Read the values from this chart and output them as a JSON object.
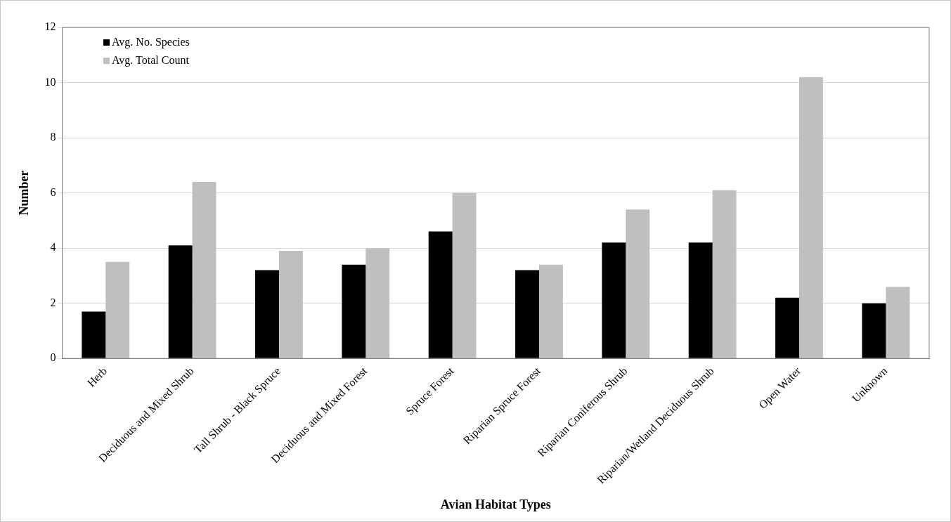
{
  "chart_data": {
    "type": "bar",
    "xlabel": "Avian Habitat Types",
    "ylabel": "Number",
    "categories": [
      "Herb",
      "Deciduous and Mixed Shrub",
      "Tall Shrub - Black Spruce",
      "Deciduous and Mixed Forest",
      "Spruce Forest",
      "Riparian Spruce Forest",
      "Riparian Coniferous Shrub",
      "Riparian/Wetland Deciduous Shrub",
      "Open Water",
      "Unknown"
    ],
    "series": [
      {
        "name": "Avg. No. Species",
        "color": "#000000",
        "values": [
          1.7,
          4.1,
          3.2,
          3.4,
          4.6,
          3.2,
          4.2,
          4.2,
          2.2,
          2.0
        ]
      },
      {
        "name": "Avg. Total Count",
        "color": "#bfbfbf",
        "values": [
          3.5,
          6.4,
          3.9,
          4.0,
          6.0,
          3.4,
          5.4,
          6.1,
          10.2,
          2.6
        ]
      }
    ],
    "ylim": [
      0,
      12
    ],
    "yticks": [
      0,
      2,
      4,
      6,
      8,
      10,
      12
    ],
    "grid": "y",
    "legend": "top left"
  }
}
